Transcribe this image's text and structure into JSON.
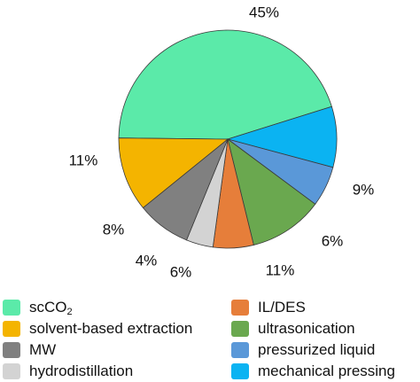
{
  "chart_data": {
    "type": "pie",
    "slices": [
      {
        "label": "scCO",
        "label_sub": "2",
        "value": 45,
        "value_label": "45%",
        "color": "#5BEAA9"
      },
      {
        "label": "mechanical pressing",
        "value": 9,
        "value_label": "9%",
        "color": "#0BB3F2"
      },
      {
        "label": "pressurized liquid",
        "value": 6,
        "value_label": "6%",
        "color": "#5A98D8"
      },
      {
        "label": "ultrasonication",
        "value": 11,
        "value_label": "11%",
        "color": "#6AA84F"
      },
      {
        "label": "IL/DES",
        "value": 6,
        "value_label": "6%",
        "color": "#E67E3A"
      },
      {
        "label": "hydrodistillation",
        "value": 4,
        "value_label": "4%",
        "color": "#D3D3D3"
      },
      {
        "label": "MW",
        "value": 8,
        "value_label": "8%",
        "color": "#808080"
      },
      {
        "label": "solvent-based extraction",
        "value": 11,
        "value_label": "11%",
        "color": "#F4B400"
      }
    ],
    "legend": {
      "columns": [
        [
          "scCO2",
          "solvent-based extraction",
          "MW",
          "hydrodistillation"
        ],
        [
          "IL/DES",
          "ultrasonication",
          "pressurized liquid",
          "mechanical pressing"
        ]
      ]
    }
  }
}
